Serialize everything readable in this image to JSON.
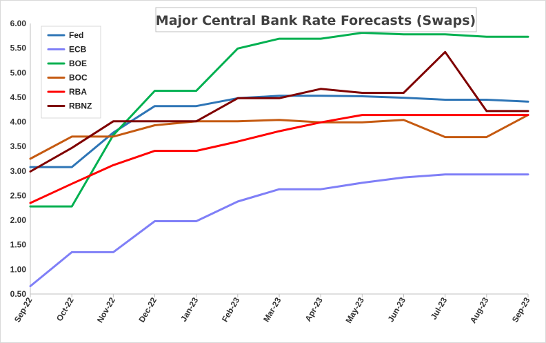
{
  "chart_data": {
    "type": "line",
    "title": "Major Central Bank Rate Forecasts (Swaps)",
    "xlabel": "",
    "ylabel": "",
    "categories": [
      "Sep-22",
      "Oct-22",
      "Nov-22",
      "Dec-22",
      "Jan-23",
      "Feb-23",
      "Mar-23",
      "Apr-23",
      "May-23",
      "Jun-23",
      "Jul-23",
      "Aug-23",
      "Sep-23"
    ],
    "ylim": [
      0.5,
      6.0
    ],
    "yticks": [
      "6.00",
      "5.50",
      "5.00",
      "4.50",
      "4.00",
      "3.50",
      "3.00",
      "2.50",
      "2.00",
      "1.50",
      "1.00",
      "0.50"
    ],
    "grid": false,
    "legend_position": "top-left",
    "series": [
      {
        "name": "Fed",
        "color": "#2e75b6",
        "values": [
          3.08,
          3.08,
          3.78,
          4.32,
          4.32,
          4.48,
          4.53,
          4.53,
          4.52,
          4.49,
          4.45,
          4.45,
          4.41
        ]
      },
      {
        "name": "ECB",
        "color": "#7f7ff7",
        "values": [
          0.66,
          1.35,
          1.35,
          1.98,
          1.98,
          2.38,
          2.63,
          2.63,
          2.76,
          2.87,
          2.93,
          2.93,
          2.93
        ]
      },
      {
        "name": "BOE",
        "color": "#00b050",
        "values": [
          2.28,
          2.28,
          3.73,
          4.63,
          4.63,
          5.49,
          5.69,
          5.69,
          5.81,
          5.78,
          5.78,
          5.73,
          5.73
        ]
      },
      {
        "name": "BOC",
        "color": "#c55a11",
        "values": [
          3.25,
          3.7,
          3.7,
          3.93,
          4.01,
          4.01,
          4.04,
          3.99,
          3.99,
          4.04,
          3.69,
          3.69,
          4.14
        ]
      },
      {
        "name": "RBA",
        "color": "#ff0000",
        "values": [
          2.35,
          2.74,
          3.12,
          3.41,
          3.41,
          3.6,
          3.81,
          3.99,
          4.14,
          4.14,
          4.14,
          4.14,
          4.14
        ]
      },
      {
        "name": "RBNZ",
        "color": "#7f0000",
        "values": [
          2.99,
          3.47,
          4.01,
          4.01,
          4.01,
          4.48,
          4.48,
          4.67,
          4.59,
          4.59,
          5.42,
          4.22,
          4.22
        ]
      }
    ]
  }
}
